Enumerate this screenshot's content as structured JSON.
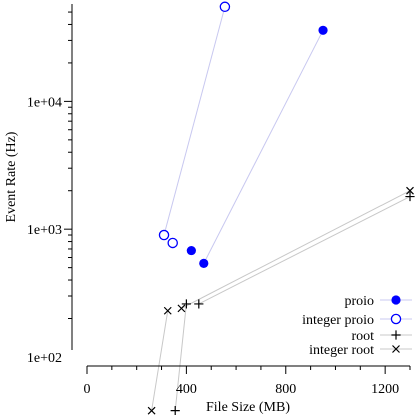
{
  "chart_data": {
    "type": "scatter",
    "title": "",
    "xlabel": "File Size (MB)",
    "ylabel": "Event Rate (Hz)",
    "xlim": [
      0,
      1300
    ],
    "ylim_log10": [
      1.52,
      4.82
    ],
    "log_y": true,
    "grid": false,
    "legend_position": "bottom-right",
    "x_ticks": [
      0,
      400,
      800,
      1200
    ],
    "x_tick_labels": [
      "0",
      "400",
      "800",
      "1200"
    ],
    "y_ticks": [
      100,
      1000,
      10000
    ],
    "y_tick_labels": [
      "1e+02",
      "1e+03",
      "1e+04"
    ],
    "series": [
      {
        "name": "proio",
        "marker": "filled-circle",
        "color": "#0000ff",
        "line_color": "#c8c8f0",
        "points": [
          [
            420,
            680
          ],
          [
            470,
            540
          ],
          [
            950,
            36000
          ]
        ],
        "segments": [
          [
            1,
            2
          ]
        ]
      },
      {
        "name": "integer proio",
        "marker": "open-circle",
        "color": "#0000ff",
        "line_color": "#c8c8f0",
        "points": [
          [
            310,
            900
          ],
          [
            345,
            780
          ],
          [
            555,
            55000
          ]
        ],
        "segments": [
          [
            0,
            2
          ]
        ]
      },
      {
        "name": "root",
        "marker": "plus",
        "color": "#000000",
        "line_color": "#c8c8c8",
        "points": [
          [
            355,
            38
          ],
          [
            400,
            260
          ],
          [
            450,
            260
          ],
          [
            1300,
            1800
          ]
        ],
        "segments": [
          [
            0,
            1
          ],
          [
            2,
            3
          ]
        ]
      },
      {
        "name": "integer root",
        "marker": "cross",
        "color": "#000000",
        "line_color": "#c8c8c8",
        "points": [
          [
            260,
            38
          ],
          [
            325,
            230
          ],
          [
            380,
            240
          ],
          [
            1300,
            2000
          ]
        ],
        "segments": [
          [
            0,
            1
          ],
          [
            2,
            3
          ]
        ]
      }
    ]
  }
}
